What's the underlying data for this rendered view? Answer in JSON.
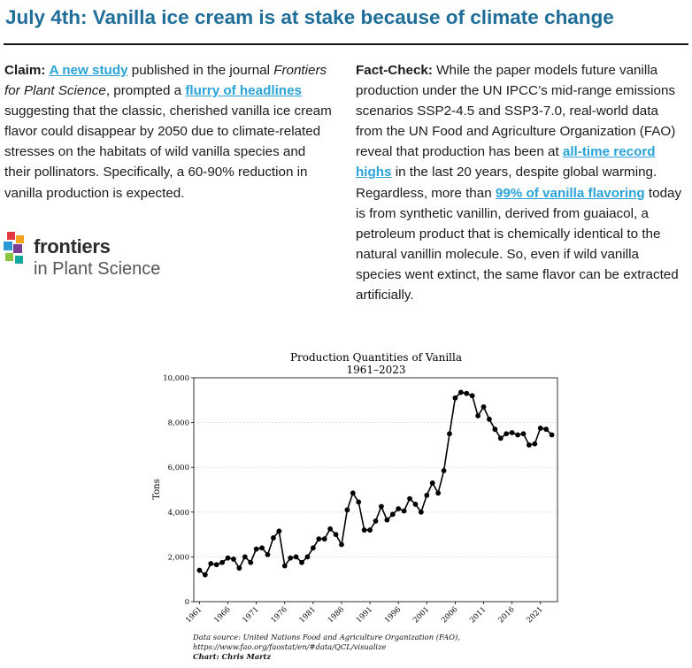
{
  "header": {
    "title": "July 4th: Vanilla ice cream is at stake because of climate change"
  },
  "claim": {
    "label": "Claim:",
    "link1": "A new study",
    "text1": " published in the journal ",
    "journal": "Frontiers for Plant Science",
    "text2": ", prompted a ",
    "link2": "flurry of headlines",
    "text3": " suggesting that the classic, cherished vanilla ice cream flavor could disappear by 2050 due to climate-related stresses on the habitats of wild vanilla species and their pollinators. Specifically, a 60-90% reduction in vanilla production is expected."
  },
  "fact_check": {
    "label": "Fact-Check:",
    "text1": " While the paper models future vanilla production under the UN IPCC’s mid-range emissions scenarios SSP2-4.5 and SSP3-7.0, real-world data from the UN Food and Agriculture Organization (FAO) reveal that production has been at ",
    "link1": "all-time record highs",
    "text2": " in the last 20 years, despite global warming. Regardless, more than ",
    "link2": "99% of vanilla flavoring",
    "text3": " today is from synthetic vanillin, derived from guaiacol, a petroleum product that is chemically identical to the natural vanillin molecule. So, even if wild vanilla species went extinct, the same flavor can be extracted artificially."
  },
  "logo": {
    "line1": "frontiers",
    "line2": "in Plant Science",
    "colors": [
      "#e2383f",
      "#f6a31b",
      "#2b9ad6",
      "#7a3e97",
      "#8bc540",
      "#13a89e"
    ]
  },
  "chart_data": {
    "type": "line",
    "title": "Production Quantities of Vanilla",
    "subtitle": "1961–2023",
    "ylabel": "Tons",
    "xlabel": "",
    "ylim": [
      0,
      10000
    ],
    "xlim": [
      1960,
      2024
    ],
    "yticks": [
      0,
      2000,
      4000,
      6000,
      8000,
      10000
    ],
    "ytick_labels": [
      "0",
      "2,000",
      "4,000",
      "6,000",
      "8,000",
      "10,000"
    ],
    "xticks": [
      1961,
      1966,
      1971,
      1976,
      1981,
      1986,
      1991,
      1996,
      2001,
      2006,
      2011,
      2016,
      2021
    ],
    "grid": "horizontal",
    "line_color": "#000000",
    "x": [
      1961,
      1962,
      1963,
      1964,
      1965,
      1966,
      1967,
      1968,
      1969,
      1970,
      1971,
      1972,
      1973,
      1974,
      1975,
      1976,
      1977,
      1978,
      1979,
      1980,
      1981,
      1982,
      1983,
      1984,
      1985,
      1986,
      1987,
      1988,
      1989,
      1990,
      1991,
      1992,
      1993,
      1994,
      1995,
      1996,
      1997,
      1998,
      1999,
      2000,
      2001,
      2002,
      2003,
      2004,
      2005,
      2006,
      2007,
      2008,
      2009,
      2010,
      2011,
      2012,
      2013,
      2014,
      2015,
      2016,
      2017,
      2018,
      2019,
      2020,
      2021,
      2022,
      2023
    ],
    "y": [
      1400,
      1200,
      1700,
      1650,
      1750,
      1950,
      1900,
      1500,
      2000,
      1750,
      2350,
      2400,
      2100,
      2850,
      3150,
      1600,
      1950,
      2000,
      1750,
      2000,
      2400,
      2800,
      2800,
      3250,
      3000,
      2550,
      4100,
      4850,
      4450,
      3200,
      3200,
      3600,
      4250,
      3650,
      3900,
      4150,
      4050,
      4600,
      4350,
      4000,
      4750,
      5300,
      4850,
      5850,
      7500,
      9100,
      9350,
      9300,
      9200,
      8300,
      8700,
      8150,
      7700,
      7300,
      7500,
      7550,
      7450,
      7500,
      7000,
      7050,
      7750,
      7700,
      7450
    ]
  },
  "source": {
    "line1": "Data source: United Nations Food and Agriculture Organization (FAO),",
    "line2": "https://www.fao.org/faostat/en/#data/QCL/visualize",
    "line3": "Chart: Chris Martz"
  }
}
